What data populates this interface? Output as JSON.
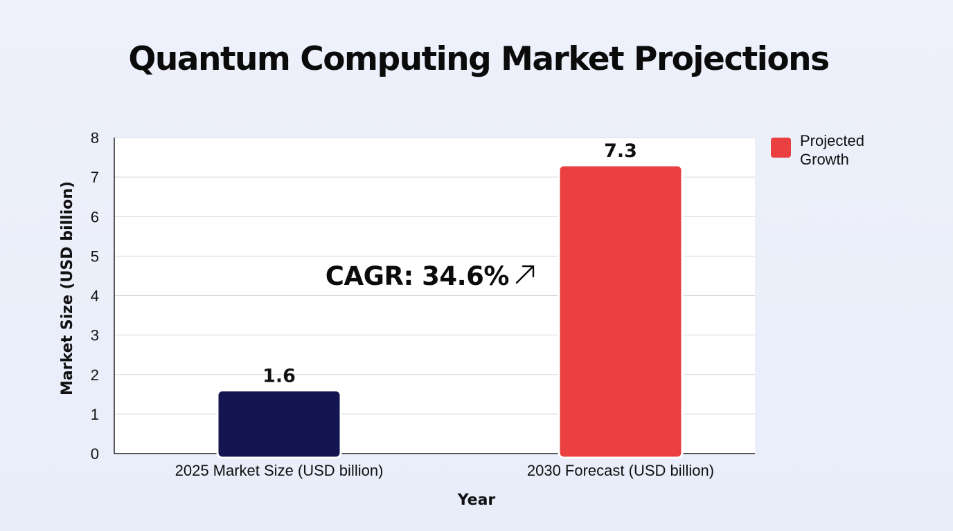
{
  "chart_data": {
    "type": "bar",
    "title": "Quantum Computing Market Projections",
    "xlabel": "Year",
    "ylabel": "Market Size (USD billion)",
    "ylim": [
      0,
      8
    ],
    "yticks": [
      0,
      1,
      2,
      3,
      4,
      5,
      6,
      7,
      8
    ],
    "grid": true,
    "categories": [
      "2025 Market Size (USD billion)",
      "2030 Forecast (USD billion)"
    ],
    "values": [
      1.6,
      7.3
    ],
    "value_labels": [
      "1.6",
      "7.3"
    ],
    "bar_colors": [
      "#141652",
      "#ea4042"
    ],
    "legend": {
      "placement": "top-right",
      "entries": [
        {
          "label": "Projected Growth",
          "color": "#ea4042"
        }
      ]
    },
    "annotation": {
      "text": "CAGR: 34.6%",
      "icon": "arrow-up-right-icon"
    }
  }
}
